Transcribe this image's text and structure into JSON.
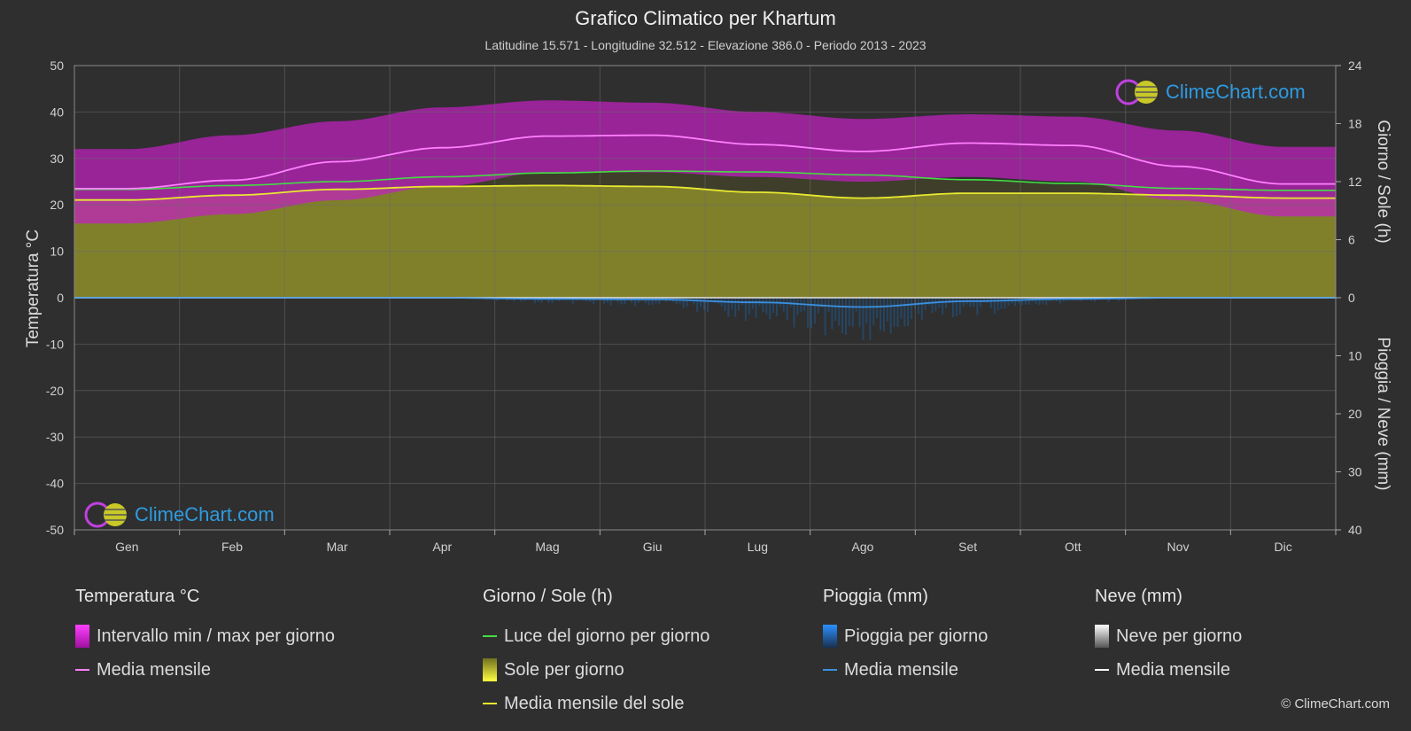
{
  "title": "Grafico Climatico per Khartum",
  "subtitle": "Latitudine 15.571 - Longitudine 32.512 - Elevazione 386.0 - Periodo 2013 - 2023",
  "copyright": "© ClimeChart.com",
  "logo_text": "ClimeChart.com",
  "colors": {
    "temp_range": "#d020d0",
    "temp_mean": "#ff80ff",
    "daylight": "#44dd44",
    "sun_fill": "#a8a828",
    "sun_mean": "#e8e830",
    "rain": "#1e78c8",
    "rain_mean": "#3a90e0",
    "snow_mean": "#ffffff"
  },
  "legend": [
    {
      "title": "Temperatura °C",
      "items": [
        {
          "label": "Intervallo min / max per giorno",
          "swatch": "box",
          "color": "#e020e0"
        },
        {
          "label": "Media mensile",
          "swatch": "line",
          "color": "#ff80ff"
        }
      ]
    },
    {
      "title": "Giorno / Sole (h)",
      "items": [
        {
          "label": "Luce del giorno per giorno",
          "swatch": "line",
          "color": "#44dd44"
        },
        {
          "label": "Sole per giorno",
          "swatch": "box",
          "color": "#d8d830"
        },
        {
          "label": "Media mensile del sole",
          "swatch": "line",
          "color": "#e8e830"
        }
      ]
    },
    {
      "title": "Pioggia (mm)",
      "items": [
        {
          "label": "Pioggia per giorno",
          "swatch": "box",
          "color": "#2a88e0"
        },
        {
          "label": "Media mensile",
          "swatch": "line",
          "color": "#3a90e0"
        }
      ]
    },
    {
      "title": "Neve (mm)",
      "items": [
        {
          "label": "Neve per giorno",
          "swatch": "box",
          "color": "#e8e8e8"
        },
        {
          "label": "Media mensile",
          "swatch": "line",
          "color": "#ffffff"
        }
      ]
    }
  ],
  "chart_data": {
    "type": "area",
    "categories": [
      "Gen",
      "Feb",
      "Mar",
      "Apr",
      "Mag",
      "Giu",
      "Lug",
      "Ago",
      "Set",
      "Ott",
      "Nov",
      "Dic"
    ],
    "y_left": {
      "label": "Temperatura °C",
      "range": [
        -50,
        50
      ],
      "ticks": [
        50,
        40,
        30,
        20,
        10,
        0,
        -10,
        -20,
        -30,
        -40,
        -50
      ]
    },
    "y_right_top": {
      "label": "Giorno / Sole (h)",
      "range": [
        0,
        24
      ],
      "ticks": [
        24,
        18,
        12,
        6,
        0
      ]
    },
    "y_right_bottom": {
      "label": "Pioggia / Neve (mm)",
      "range": [
        0,
        40
      ],
      "ticks": [
        10,
        20,
        30,
        40
      ]
    },
    "grid": true,
    "series": [
      {
        "name": "Media mensile",
        "kind": "temp_mean",
        "values": [
          23.5,
          25.3,
          29.3,
          32.3,
          34.8,
          35.0,
          33.0,
          31.5,
          33.3,
          32.8,
          28.3,
          24.5
        ]
      },
      {
        "name": "Intervallo min / max per giorno (max)",
        "kind": "temp_max",
        "values": [
          32,
          35,
          38,
          41,
          42.5,
          42,
          40,
          38.5,
          39.5,
          39,
          36,
          32.5
        ]
      },
      {
        "name": "Intervallo min / max per giorno (min)",
        "kind": "temp_min",
        "values": [
          16,
          18,
          21,
          24,
          27,
          27,
          26,
          25,
          26,
          25,
          21,
          17.5
        ]
      },
      {
        "name": "Luce del giorno per giorno",
        "kind": "daylight",
        "values": [
          11.2,
          11.6,
          12.0,
          12.5,
          12.9,
          13.1,
          13.0,
          12.7,
          12.2,
          11.8,
          11.3,
          11.1
        ]
      },
      {
        "name": "Media mensile del sole",
        "kind": "sun_mean",
        "values": [
          10.1,
          10.6,
          11.2,
          11.5,
          11.6,
          11.5,
          10.9,
          10.3,
          10.8,
          10.8,
          10.6,
          10.3
        ]
      },
      {
        "name": "Media mensile",
        "kind": "rain_mean",
        "values": [
          0.0,
          0.0,
          0.0,
          0.0,
          0.2,
          0.3,
          0.8,
          1.6,
          0.6,
          0.2,
          0.0,
          0.0
        ]
      },
      {
        "name": "Media mensile",
        "kind": "snow_mean",
        "values": [
          0,
          0,
          0,
          0,
          0,
          0,
          0,
          0,
          0,
          0,
          0,
          0
        ]
      }
    ]
  }
}
